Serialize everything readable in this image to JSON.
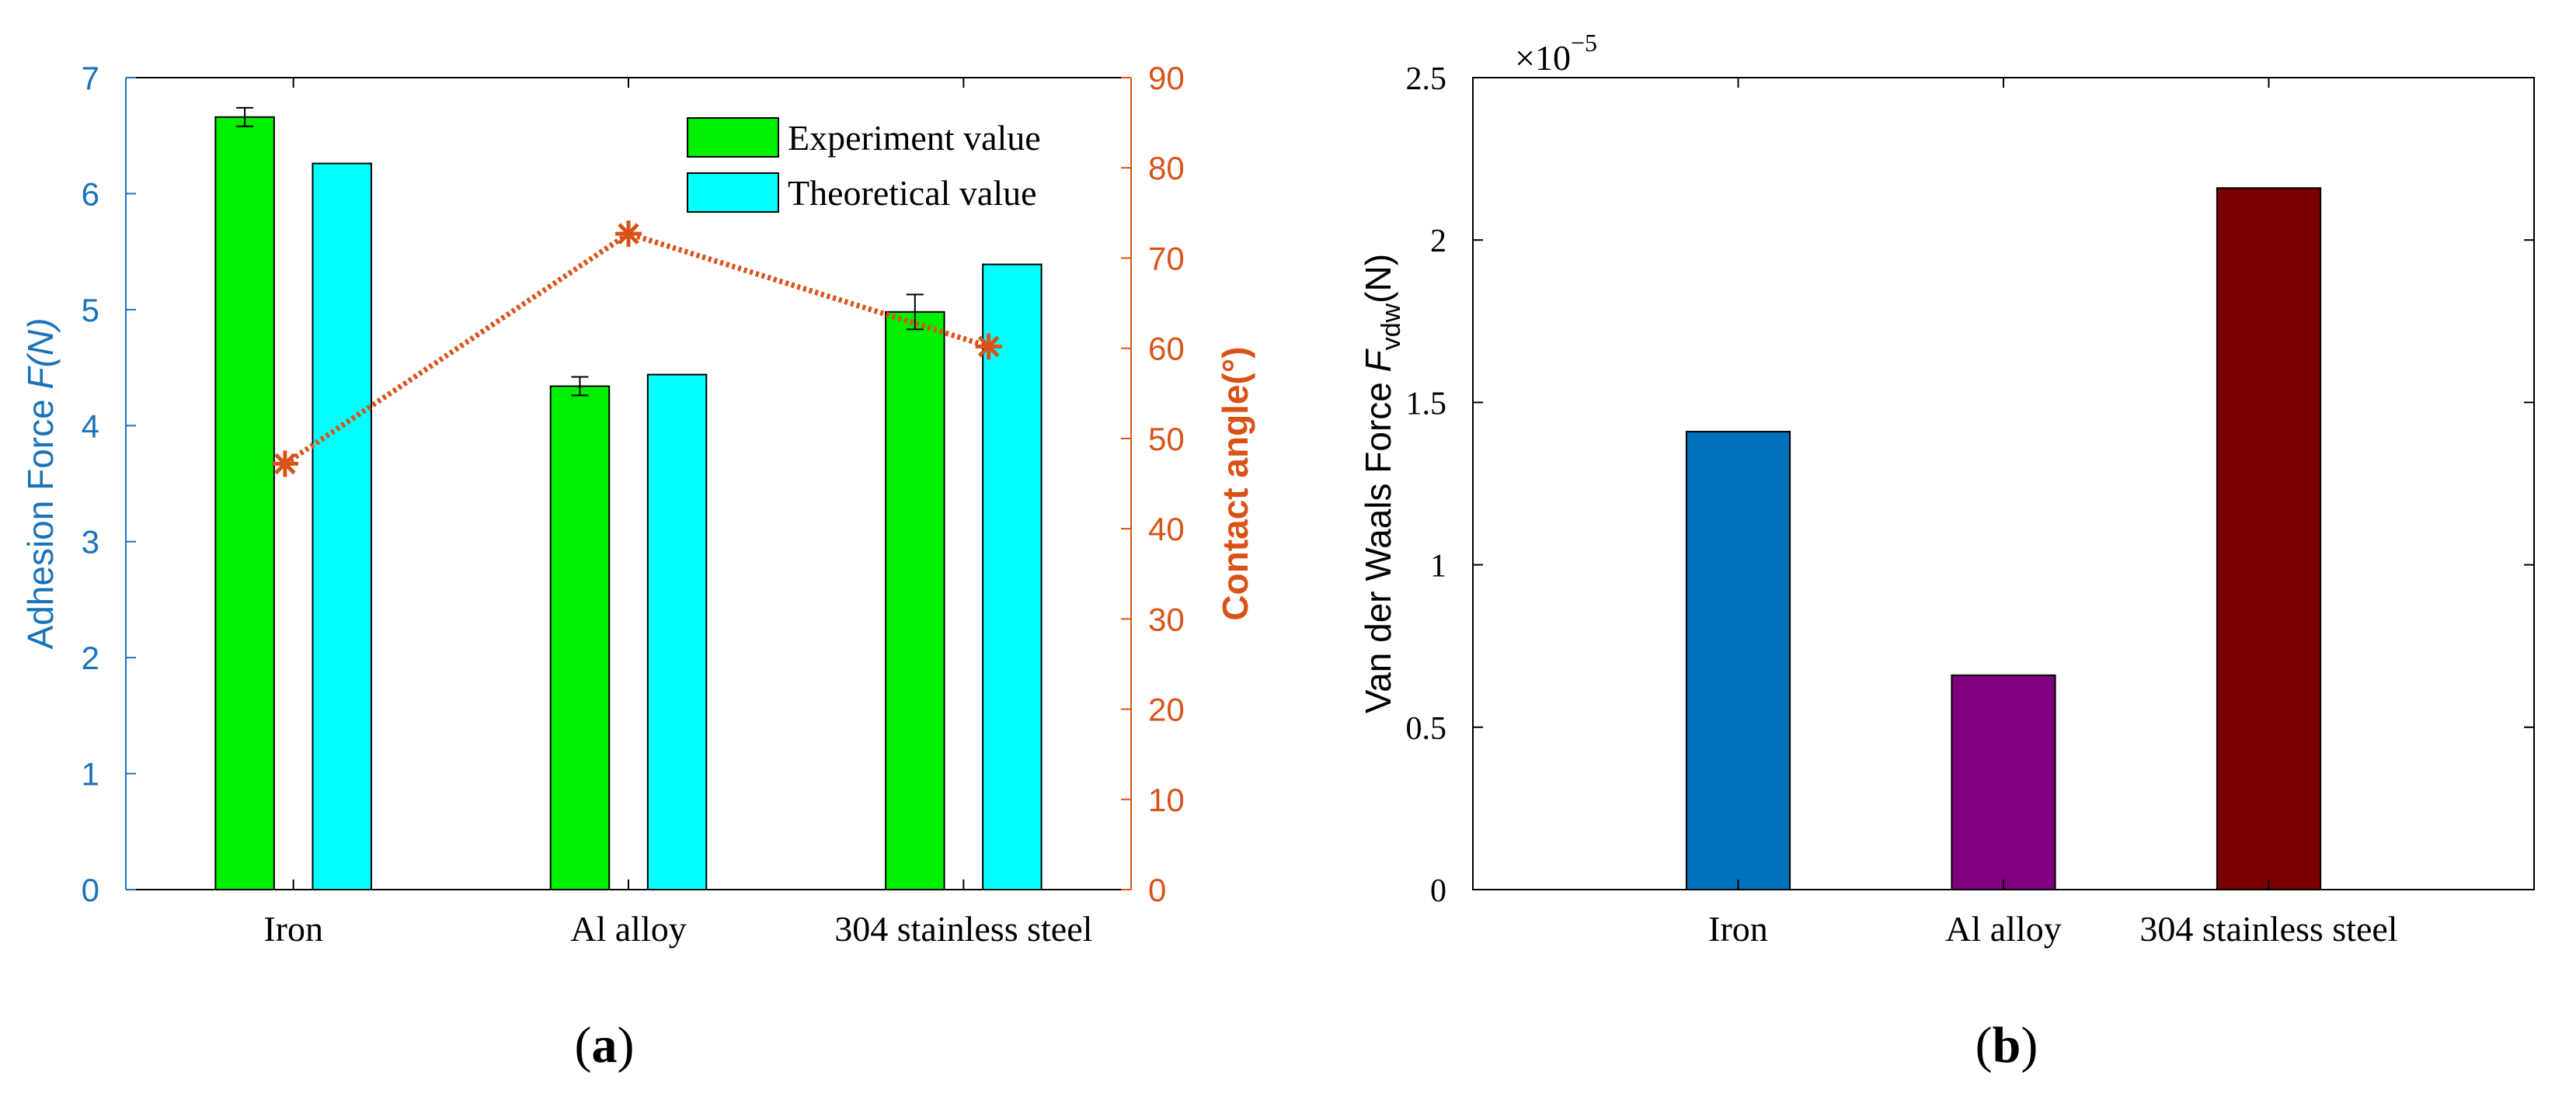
{
  "colors": {
    "left_axis": "#1a73b8",
    "right_axis": "#d95319",
    "experiment": "#00ee00",
    "theoretical": "#00ffff",
    "iron_b": "#0072bd",
    "al_b": "#7e007e",
    "steel_b": "#7a0000",
    "line": "#d95319"
  },
  "chart_data": [
    {
      "type": "bar",
      "panel_label": "a",
      "categories": [
        "Iron",
        "Al alloy",
        "304 stainless steel"
      ],
      "series": [
        {
          "name": "Experiment value",
          "values": [
            6.66,
            4.34,
            4.98
          ],
          "errors": [
            0.08,
            0.08,
            0.15
          ]
        },
        {
          "name": "Theoretical value",
          "values": [
            6.26,
            4.44,
            5.39
          ]
        }
      ],
      "ylabel_left_main": "Adhesion Force ",
      "ylabel_left_italic": "F(N)",
      "ylim": [
        0,
        7
      ],
      "yticks": [
        0,
        1,
        2,
        3,
        4,
        5,
        6,
        7
      ],
      "ylabel_right": "Contact angle(°)",
      "ylim_right": [
        0,
        90
      ],
      "yticks_right": [
        0,
        10,
        20,
        30,
        40,
        50,
        60,
        70,
        80,
        90
      ],
      "contact_angle": {
        "x_positions": [
          0.975,
          2.0,
          3.075
        ],
        "values": [
          47.2,
          72.7,
          60.2
        ]
      },
      "legend_position": "top-right"
    },
    {
      "type": "bar",
      "panel_label": "b",
      "categories": [
        "Iron",
        "Al alloy",
        "304 stainless steel"
      ],
      "values": [
        1.41e-05,
        6.6e-06,
        2.16e-05
      ],
      "ylabel_main": "Van der Waals Force ",
      "ylabel_symbol": "F",
      "ylabel_subscript": "vdw",
      "ylabel_unit": "(N)",
      "ylim": [
        0,
        2.5e-05
      ],
      "ytick_labels": [
        "0",
        "0.5",
        "1",
        "1.5",
        "2",
        "2.5"
      ],
      "exponent_base": "×10",
      "exponent_power": "−5"
    }
  ]
}
